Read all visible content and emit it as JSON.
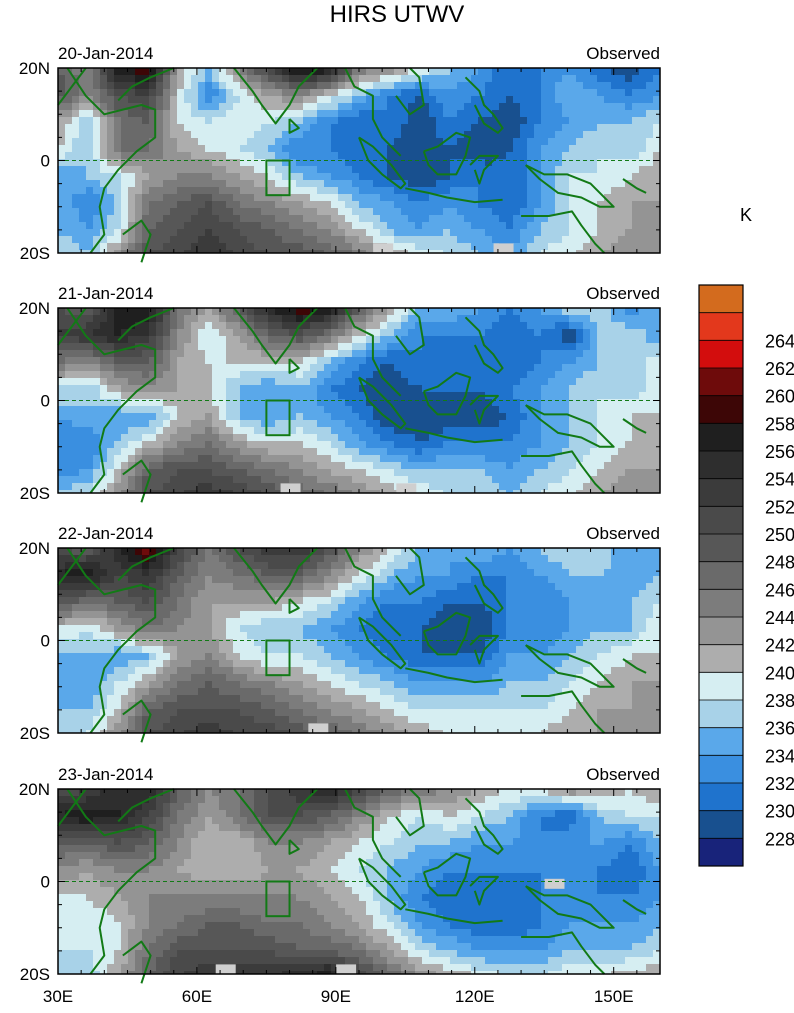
{
  "chart_data": {
    "type": "heatmap",
    "title": "HIRS UTWV",
    "unit_label": "K",
    "x_ticks": [
      "30E",
      "60E",
      "90E",
      "120E",
      "150E"
    ],
    "x_tick_values": [
      30,
      60,
      90,
      120,
      150
    ],
    "xlim": [
      30,
      160
    ],
    "y_ticks": [
      "20N",
      "0",
      "20S"
    ],
    "y_tick_values": [
      20,
      0,
      -20
    ],
    "ylim": [
      -20,
      20
    ],
    "colorbar": {
      "levels": [
        228,
        230,
        232,
        234,
        236,
        238,
        240,
        242,
        244,
        246,
        248,
        250,
        252,
        254,
        256,
        258,
        260,
        262,
        264
      ],
      "level_labels": [
        "228",
        "230",
        "232",
        "234",
        "236",
        "238",
        "240",
        "242",
        "244",
        "246",
        "248",
        "250",
        "252",
        "254",
        "256",
        "258",
        "260",
        "262",
        "264"
      ],
      "colors": [
        "#18237a",
        "#18508f",
        "#1f73cd",
        "#3a8fe0",
        "#5aa8ea",
        "#a8d2e8",
        "#d6eef2",
        "#adadad",
        "#949494",
        "#7c7c7c",
        "#6a6a6a",
        "#575757",
        "#4a4a4a",
        "#3b3b3b",
        "#2e2e2e",
        "#1f1f1f",
        "#3d0606",
        "#6e0b0b",
        "#d30d0d",
        "#e3381c",
        "#d36b1e"
      ]
    },
    "panels": [
      {
        "date": "20-Jan-2014",
        "label": "Observed",
        "field": [
          [
            248,
            244,
            258,
            260,
            242,
            236,
            245,
            252,
            260,
            258,
            246,
            244,
            240,
            236,
            234,
            230,
            232,
            234,
            230,
            228,
            232
          ],
          [
            250,
            244,
            250,
            252,
            240,
            232,
            238,
            242,
            244,
            240,
            236,
            232,
            230,
            234,
            232,
            230,
            232,
            236,
            234,
            232,
            234
          ],
          [
            242,
            236,
            246,
            248,
            240,
            238,
            240,
            238,
            236,
            232,
            230,
            232,
            228,
            232,
            230,
            228,
            232,
            234,
            236,
            236,
            238
          ],
          [
            240,
            236,
            246,
            246,
            242,
            240,
            238,
            236,
            232,
            232,
            230,
            230,
            228,
            230,
            228,
            230,
            234,
            236,
            238,
            236,
            240
          ],
          [
            234,
            236,
            238,
            242,
            244,
            244,
            242,
            240,
            236,
            234,
            232,
            230,
            228,
            230,
            232,
            230,
            234,
            238,
            238,
            240,
            242
          ],
          [
            236,
            232,
            236,
            246,
            248,
            250,
            246,
            244,
            242,
            240,
            236,
            234,
            232,
            234,
            232,
            230,
            234,
            238,
            240,
            242,
            242
          ],
          [
            236,
            234,
            238,
            248,
            250,
            252,
            250,
            248,
            246,
            244,
            240,
            236,
            234,
            236,
            234,
            232,
            236,
            238,
            240,
            242,
            242
          ],
          [
            238,
            236,
            244,
            250,
            252,
            254,
            252,
            250,
            250,
            248,
            246,
            242,
            240,
            238,
            236,
            234,
            238,
            240,
            242,
            244,
            244
          ]
        ],
        "missing": [
          [
            100,
            -19
          ],
          [
            126,
            -19
          ]
        ]
      },
      {
        "date": "21-Jan-2014",
        "label": "Observed",
        "field": [
          [
            250,
            248,
            258,
            258,
            246,
            242,
            248,
            256,
            260,
            258,
            248,
            242,
            236,
            236,
            234,
            232,
            234,
            238,
            238,
            232,
            236
          ],
          [
            252,
            254,
            256,
            254,
            244,
            238,
            242,
            248,
            250,
            246,
            240,
            236,
            232,
            232,
            232,
            230,
            232,
            228,
            236,
            238,
            234
          ],
          [
            246,
            244,
            248,
            248,
            242,
            240,
            240,
            240,
            240,
            236,
            232,
            230,
            232,
            230,
            230,
            230,
            232,
            234,
            236,
            236,
            240
          ],
          [
            238,
            236,
            242,
            244,
            242,
            240,
            236,
            234,
            236,
            232,
            230,
            228,
            230,
            230,
            230,
            232,
            234,
            236,
            238,
            236,
            240
          ],
          [
            234,
            236,
            234,
            234,
            240,
            242,
            236,
            234,
            236,
            234,
            232,
            228,
            228,
            228,
            228,
            230,
            234,
            236,
            238,
            240,
            240
          ],
          [
            232,
            232,
            236,
            240,
            244,
            246,
            242,
            240,
            240,
            238,
            234,
            232,
            230,
            232,
            232,
            232,
            234,
            236,
            238,
            240,
            242
          ],
          [
            232,
            234,
            240,
            248,
            250,
            250,
            248,
            246,
            244,
            242,
            240,
            238,
            236,
            236,
            236,
            234,
            236,
            238,
            240,
            242,
            242
          ],
          [
            238,
            238,
            244,
            250,
            252,
            254,
            252,
            250,
            248,
            246,
            244,
            242,
            240,
            238,
            238,
            236,
            238,
            240,
            242,
            244,
            244
          ]
        ],
        "missing": [
          [
            80,
            -19
          ],
          [
            105,
            -19
          ]
        ]
      },
      {
        "date": "22-Jan-2014",
        "label": "Observed",
        "field": [
          [
            250,
            248,
            256,
            262,
            252,
            246,
            250,
            254,
            254,
            250,
            244,
            240,
            236,
            234,
            236,
            234,
            236,
            238,
            238,
            234,
            236
          ],
          [
            256,
            258,
            252,
            254,
            248,
            244,
            246,
            248,
            248,
            244,
            240,
            236,
            234,
            234,
            232,
            232,
            234,
            236,
            236,
            234,
            236
          ],
          [
            250,
            246,
            248,
            250,
            246,
            242,
            242,
            242,
            240,
            238,
            234,
            232,
            232,
            230,
            230,
            232,
            232,
            234,
            234,
            236,
            238
          ],
          [
            240,
            238,
            242,
            246,
            244,
            242,
            238,
            236,
            236,
            234,
            232,
            230,
            230,
            228,
            228,
            232,
            232,
            234,
            236,
            236,
            240
          ],
          [
            236,
            236,
            234,
            236,
            242,
            244,
            240,
            238,
            238,
            236,
            234,
            232,
            230,
            230,
            230,
            234,
            234,
            236,
            238,
            240,
            240
          ],
          [
            234,
            234,
            238,
            242,
            246,
            248,
            246,
            244,
            242,
            240,
            238,
            236,
            234,
            234,
            234,
            236,
            236,
            238,
            240,
            242,
            242
          ],
          [
            236,
            236,
            240,
            248,
            250,
            250,
            250,
            248,
            246,
            244,
            242,
            240,
            238,
            238,
            238,
            238,
            238,
            240,
            242,
            242,
            244
          ],
          [
            238,
            238,
            244,
            250,
            252,
            254,
            252,
            252,
            250,
            248,
            246,
            244,
            242,
            240,
            240,
            240,
            240,
            242,
            242,
            244,
            244
          ]
        ],
        "missing": [
          [
            86,
            -19
          ]
        ]
      },
      {
        "date": "23-Jan-2014",
        "label": "Observed",
        "field": [
          [
            250,
            252,
            256,
            256,
            248,
            244,
            246,
            250,
            254,
            256,
            252,
            248,
            246,
            244,
            242,
            240,
            240,
            244,
            242,
            240,
            242
          ],
          [
            256,
            258,
            256,
            252,
            246,
            242,
            246,
            250,
            250,
            248,
            244,
            240,
            238,
            240,
            238,
            236,
            232,
            230,
            236,
            238,
            238
          ],
          [
            248,
            248,
            250,
            248,
            244,
            240,
            240,
            244,
            244,
            242,
            240,
            238,
            236,
            236,
            234,
            234,
            232,
            234,
            234,
            232,
            236
          ],
          [
            244,
            242,
            244,
            244,
            242,
            240,
            240,
            242,
            242,
            240,
            238,
            236,
            234,
            232,
            232,
            232,
            232,
            234,
            232,
            230,
            234
          ],
          [
            240,
            240,
            242,
            244,
            244,
            244,
            244,
            244,
            244,
            242,
            240,
            236,
            232,
            230,
            230,
            230,
            232,
            234,
            232,
            232,
            234
          ],
          [
            238,
            238,
            240,
            244,
            246,
            248,
            248,
            246,
            246,
            244,
            242,
            238,
            234,
            232,
            230,
            230,
            232,
            234,
            234,
            234,
            236
          ],
          [
            238,
            238,
            240,
            246,
            250,
            250,
            250,
            250,
            248,
            248,
            246,
            242,
            238,
            236,
            234,
            234,
            234,
            236,
            236,
            236,
            238
          ],
          [
            236,
            236,
            242,
            248,
            252,
            254,
            254,
            254,
            256,
            258,
            252,
            248,
            244,
            242,
            240,
            238,
            238,
            240,
            240,
            242,
            242
          ]
        ],
        "missing": [
          [
            66,
            -19
          ],
          [
            92,
            -19
          ],
          [
            137,
            -0.5
          ]
        ]
      }
    ]
  }
}
